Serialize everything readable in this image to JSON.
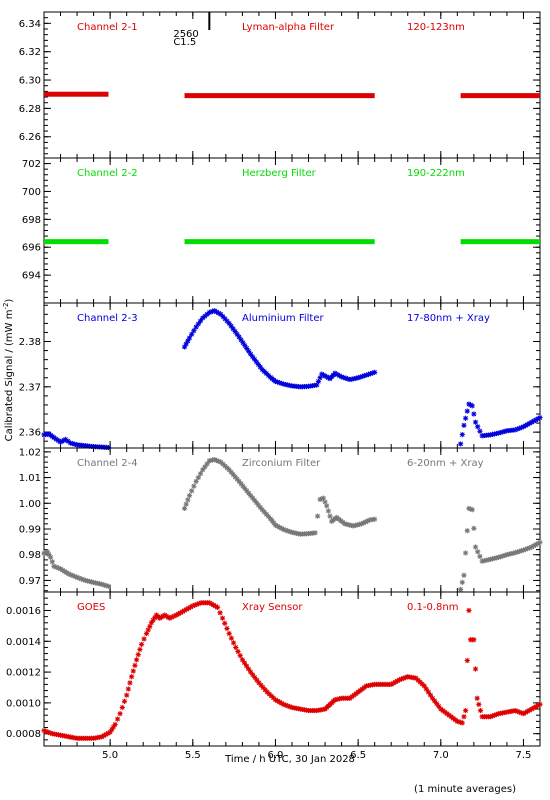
{
  "chart_data": {
    "type": "scatter",
    "xlabel": "Time / h UTC, 30 Jan 2028",
    "ylabel": "Calibrated Signal / (mW m",
    "ylabel_superscript": "-2",
    "ylabel_suffix": ")",
    "footnote": "(1 minute averages)",
    "xlim": [
      4.6,
      7.6
    ],
    "xticks": [
      "5.0",
      "5.5",
      "6.0",
      "6.5",
      "7.0",
      "7.5"
    ],
    "xtick_values": [
      5.0,
      5.5,
      6.0,
      6.5,
      7.0,
      7.5
    ],
    "flare_marker": {
      "x": 5.6,
      "label_top": "2560",
      "label_bottom": "C1.5"
    },
    "panels": [
      {
        "name": "Channel 2-1",
        "filter": "Lyman-alpha Filter",
        "band": "120-123nm",
        "color": "#dd0000",
        "ylim": [
          6.245,
          6.348
        ],
        "yticks": [
          "6.26",
          "6.28",
          "6.30",
          "6.32",
          "6.34"
        ],
        "ytick_values": [
          6.26,
          6.28,
          6.3,
          6.32,
          6.34
        ],
        "segments": [
          {
            "x_start": 4.6,
            "x_end": 4.99,
            "y": 6.29
          },
          {
            "x_start": 5.45,
            "x_end": 6.6,
            "y": 6.289
          },
          {
            "x_start": 7.12,
            "x_end": 7.6,
            "y": 6.289
          }
        ]
      },
      {
        "name": "Channel 2-2",
        "filter": "Herzberg Filter",
        "band": "190-222nm",
        "color": "#00dd00",
        "ylim": [
          692.0,
          702.4
        ],
        "yticks": [
          "694",
          "696",
          "698",
          "700",
          "702"
        ],
        "ytick_values": [
          694,
          696,
          698,
          700,
          702
        ],
        "segments": [
          {
            "x_start": 4.6,
            "x_end": 4.99,
            "y": 696.4
          },
          {
            "x_start": 5.45,
            "x_end": 6.6,
            "y": 696.4
          },
          {
            "x_start": 7.12,
            "x_end": 7.6,
            "y": 696.4
          }
        ]
      },
      {
        "name": "Channel 2-3",
        "filter": "Aluminium Filter",
        "band": "17-80nm + Xray",
        "color": "#0000dd",
        "ylim": [
          2.3565,
          2.3885
        ],
        "yticks": [
          "2.36",
          "2.37",
          "2.38"
        ],
        "ytick_values": [
          2.36,
          2.37,
          2.38
        ],
        "points": [
          [
            4.6,
            2.3594
          ],
          [
            4.63,
            2.3596
          ],
          [
            4.66,
            2.3588
          ],
          [
            4.7,
            2.3578
          ],
          [
            4.73,
            2.3584
          ],
          [
            4.76,
            2.3576
          ],
          [
            4.8,
            2.3572
          ],
          [
            4.85,
            2.357
          ],
          [
            4.9,
            2.3568
          ],
          [
            4.95,
            2.3567
          ],
          [
            4.99,
            2.3566
          ],
          [
            5.45,
            2.3788
          ],
          [
            5.48,
            2.3808
          ],
          [
            5.52,
            2.3832
          ],
          [
            5.56,
            2.3852
          ],
          [
            5.6,
            2.3864
          ],
          [
            5.63,
            2.3868
          ],
          [
            5.67,
            2.386
          ],
          [
            5.72,
            2.384
          ],
          [
            5.78,
            2.381
          ],
          [
            5.85,
            2.3772
          ],
          [
            5.92,
            2.3738
          ],
          [
            5.97,
            2.3721
          ],
          [
            6.0,
            2.3712
          ],
          [
            6.05,
            2.3706
          ],
          [
            6.1,
            2.3702
          ],
          [
            6.15,
            2.37
          ],
          [
            6.2,
            2.3701
          ],
          [
            6.25,
            2.3704
          ],
          [
            6.28,
            2.3728
          ],
          [
            6.3,
            2.3724
          ],
          [
            6.33,
            2.3718
          ],
          [
            6.36,
            2.373
          ],
          [
            6.4,
            2.3722
          ],
          [
            6.45,
            2.3716
          ],
          [
            6.5,
            2.372
          ],
          [
            6.55,
            2.3726
          ],
          [
            6.6,
            2.3732
          ],
          [
            7.12,
            2.3574
          ],
          [
            7.14,
            2.3615
          ],
          [
            7.17,
            2.3662
          ],
          [
            7.19,
            2.3658
          ],
          [
            7.21,
            2.3622
          ],
          [
            7.25,
            2.3592
          ],
          [
            7.3,
            2.3594
          ],
          [
            7.35,
            2.3598
          ],
          [
            7.4,
            2.3603
          ],
          [
            7.45,
            2.3605
          ],
          [
            7.5,
            2.3612
          ],
          [
            7.55,
            2.3622
          ],
          [
            7.6,
            2.3632
          ]
        ]
      },
      {
        "name": "Channel 2-4",
        "filter": "Zirconium Filter",
        "band": "6-20nm + Xray",
        "color": "#777777",
        "ylim": [
          0.9655,
          1.0215
        ],
        "yticks": [
          "0.97",
          "0.98",
          "0.99",
          "1.00",
          "1.01",
          "1.02"
        ],
        "ytick_values": [
          0.97,
          0.98,
          0.99,
          1.0,
          1.01,
          1.02
        ],
        "points": [
          [
            4.6,
            0.9805
          ],
          [
            4.62,
            0.9812
          ],
          [
            4.64,
            0.979
          ],
          [
            4.66,
            0.9755
          ],
          [
            4.7,
            0.9745
          ],
          [
            4.75,
            0.9725
          ],
          [
            4.8,
            0.9712
          ],
          [
            4.85,
            0.97
          ],
          [
            4.9,
            0.9692
          ],
          [
            4.95,
            0.9685
          ],
          [
            4.99,
            0.9677
          ],
          [
            5.45,
            0.998
          ],
          [
            5.48,
            1.003
          ],
          [
            5.52,
            1.0085
          ],
          [
            5.56,
            1.013
          ],
          [
            5.6,
            1.0165
          ],
          [
            5.63,
            1.017
          ],
          [
            5.67,
            1.016
          ],
          [
            5.72,
            1.013
          ],
          [
            5.78,
            1.0085
          ],
          [
            5.85,
            1.003
          ],
          [
            5.92,
            0.9975
          ],
          [
            5.97,
            0.994
          ],
          [
            6.0,
            0.9915
          ],
          [
            6.05,
            0.9898
          ],
          [
            6.1,
            0.9887
          ],
          [
            6.15,
            0.988
          ],
          [
            6.2,
            0.9882
          ],
          [
            6.24,
            0.9885
          ],
          [
            6.27,
            1.0015
          ],
          [
            6.29,
            1.002
          ],
          [
            6.31,
            0.999
          ],
          [
            6.34,
            0.993
          ],
          [
            6.37,
            0.9945
          ],
          [
            6.42,
            0.992
          ],
          [
            6.47,
            0.9912
          ],
          [
            6.52,
            0.992
          ],
          [
            6.57,
            0.9935
          ],
          [
            6.6,
            0.9938
          ],
          [
            7.12,
            0.9665
          ],
          [
            7.14,
            0.972
          ],
          [
            7.17,
            0.998
          ],
          [
            7.19,
            0.9975
          ],
          [
            7.21,
            0.983
          ],
          [
            7.25,
            0.9775
          ],
          [
            7.3,
            0.9782
          ],
          [
            7.35,
            0.979
          ],
          [
            7.4,
            0.98
          ],
          [
            7.45,
            0.9808
          ],
          [
            7.5,
            0.9818
          ],
          [
            7.55,
            0.983
          ],
          [
            7.6,
            0.9848
          ]
        ]
      },
      {
        "name": "GOES",
        "filter": "Xray Sensor",
        "band": "0.1-0.8nm",
        "color": "#dd0000",
        "ylim": [
          0.00072,
          0.00172
        ],
        "yticks": [
          "0.0008",
          "0.0010",
          "0.0012",
          "0.0014",
          "0.0016"
        ],
        "ytick_values": [
          0.0008,
          0.001,
          0.0012,
          0.0014,
          0.0016
        ],
        "points": [
          [
            4.6,
            0.00082
          ],
          [
            4.65,
            0.0008
          ],
          [
            4.7,
            0.00079
          ],
          [
            4.75,
            0.00078
          ],
          [
            4.8,
            0.00077
          ],
          [
            4.85,
            0.00077
          ],
          [
            4.9,
            0.00077
          ],
          [
            4.95,
            0.00078
          ],
          [
            5.0,
            0.00081
          ],
          [
            5.03,
            0.00086
          ],
          [
            5.06,
            0.00093
          ],
          [
            5.1,
            0.00105
          ],
          [
            5.13,
            0.00117
          ],
          [
            5.16,
            0.00128
          ],
          [
            5.19,
            0.00138
          ],
          [
            5.22,
            0.00145
          ],
          [
            5.25,
            0.00152
          ],
          [
            5.28,
            0.00157
          ],
          [
            5.3,
            0.00155
          ],
          [
            5.33,
            0.00157
          ],
          [
            5.36,
            0.00155
          ],
          [
            5.4,
            0.00157
          ],
          [
            5.45,
            0.0016
          ],
          [
            5.5,
            0.00163
          ],
          [
            5.55,
            0.00165
          ],
          [
            5.6,
            0.00165
          ],
          [
            5.65,
            0.00162
          ],
          [
            5.68,
            0.00155
          ],
          [
            5.72,
            0.00145
          ],
          [
            5.76,
            0.00136
          ],
          [
            5.8,
            0.00128
          ],
          [
            5.85,
            0.0012
          ],
          [
            5.9,
            0.00113
          ],
          [
            5.95,
            0.00107
          ],
          [
            6.0,
            0.00102
          ],
          [
            6.05,
            0.00099
          ],
          [
            6.1,
            0.00097
          ],
          [
            6.15,
            0.00096
          ],
          [
            6.2,
            0.00095
          ],
          [
            6.25,
            0.00095
          ],
          [
            6.3,
            0.00096
          ],
          [
            6.33,
            0.00099
          ],
          [
            6.36,
            0.00102
          ],
          [
            6.4,
            0.00103
          ],
          [
            6.45,
            0.00103
          ],
          [
            6.5,
            0.00107
          ],
          [
            6.55,
            0.00111
          ],
          [
            6.6,
            0.00112
          ],
          [
            6.65,
            0.00112
          ],
          [
            6.7,
            0.00112
          ],
          [
            6.75,
            0.00115
          ],
          [
            6.8,
            0.00117
          ],
          [
            6.85,
            0.00116
          ],
          [
            6.9,
            0.00111
          ],
          [
            6.95,
            0.00103
          ],
          [
            7.0,
            0.00096
          ],
          [
            7.05,
            0.00092
          ],
          [
            7.1,
            0.00088
          ],
          [
            7.13,
            0.00087
          ],
          [
            7.15,
            0.00095
          ],
          [
            7.17,
            0.0016
          ],
          [
            7.18,
            0.00141
          ],
          [
            7.2,
            0.00141
          ],
          [
            7.22,
            0.00103
          ],
          [
            7.25,
            0.00091
          ],
          [
            7.3,
            0.00091
          ],
          [
            7.35,
            0.00093
          ],
          [
            7.4,
            0.00094
          ],
          [
            7.45,
            0.00095
          ],
          [
            7.5,
            0.00093
          ],
          [
            7.55,
            0.00096
          ],
          [
            7.6,
            0.00099
          ]
        ]
      }
    ]
  }
}
